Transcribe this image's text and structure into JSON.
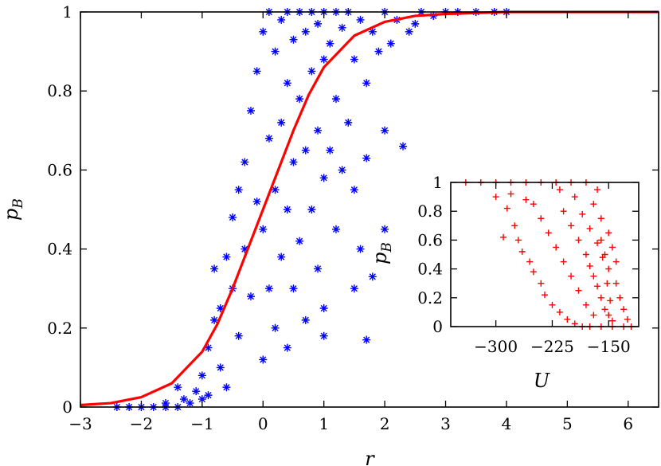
{
  "chart_data": [
    {
      "type": "scatter",
      "title": "",
      "xlabel": "r",
      "ylabel": {
        "base": "p",
        "sub": "B"
      },
      "xlim": [
        -3,
        6.5
      ],
      "ylim": [
        0,
        1
      ],
      "xticks": [
        -3,
        -2,
        -1,
        0,
        1,
        2,
        3,
        4,
        5,
        6
      ],
      "yticks": [
        0,
        0.2,
        0.4,
        0.6,
        0.8,
        1
      ],
      "xtick_labels": [
        "−3",
        "−2",
        "−1",
        "0",
        "1",
        "2",
        "3",
        "4",
        "5",
        "6"
      ],
      "ytick_labels": [
        "0",
        "0.2",
        "0.4",
        "0.6",
        "0.8",
        "1"
      ],
      "grid": false,
      "legend": "none",
      "series": [
        {
          "kind": "scatter",
          "marker": "asterisk",
          "color": "#0000ff",
          "points": [
            [
              -2.4,
              0.0
            ],
            [
              -2.2,
              0.0
            ],
            [
              -2.0,
              0.0
            ],
            [
              -1.8,
              0.0
            ],
            [
              -1.6,
              0.0
            ],
            [
              -1.6,
              0.01
            ],
            [
              -1.4,
              0.0
            ],
            [
              -1.4,
              0.05
            ],
            [
              -1.3,
              0.02
            ],
            [
              -1.2,
              0.01
            ],
            [
              -1.1,
              0.04
            ],
            [
              -1.0,
              0.02
            ],
            [
              -1.0,
              0.08
            ],
            [
              -0.9,
              0.15
            ],
            [
              -0.9,
              0.03
            ],
            [
              -0.8,
              0.22
            ],
            [
              -0.8,
              0.35
            ],
            [
              -0.7,
              0.1
            ],
            [
              -0.7,
              0.25
            ],
            [
              -0.6,
              0.38
            ],
            [
              -0.6,
              0.05
            ],
            [
              -0.5,
              0.3
            ],
            [
              -0.5,
              0.48
            ],
            [
              -0.4,
              0.55
            ],
            [
              -0.4,
              0.18
            ],
            [
              -0.3,
              0.62
            ],
            [
              -0.3,
              0.4
            ],
            [
              -0.2,
              0.75
            ],
            [
              -0.2,
              0.28
            ],
            [
              -0.1,
              0.85
            ],
            [
              -0.1,
              0.52
            ],
            [
              0.0,
              0.95
            ],
            [
              0.0,
              0.45
            ],
            [
              0.0,
              0.12
            ],
            [
              0.1,
              1.0
            ],
            [
              0.1,
              0.68
            ],
            [
              0.1,
              0.3
            ],
            [
              0.2,
              0.9
            ],
            [
              0.2,
              0.55
            ],
            [
              0.2,
              0.2
            ],
            [
              0.3,
              0.98
            ],
            [
              0.3,
              0.72
            ],
            [
              0.3,
              0.38
            ],
            [
              0.4,
              1.0
            ],
            [
              0.4,
              0.82
            ],
            [
              0.4,
              0.5
            ],
            [
              0.4,
              0.15
            ],
            [
              0.5,
              0.93
            ],
            [
              0.5,
              0.62
            ],
            [
              0.5,
              0.3
            ],
            [
              0.6,
              1.0
            ],
            [
              0.6,
              0.78
            ],
            [
              0.6,
              0.42
            ],
            [
              0.7,
              0.95
            ],
            [
              0.7,
              0.65
            ],
            [
              0.7,
              0.22
            ],
            [
              0.8,
              1.0
            ],
            [
              0.8,
              0.85
            ],
            [
              0.8,
              0.5
            ],
            [
              0.9,
              0.97
            ],
            [
              0.9,
              0.7
            ],
            [
              0.9,
              0.35
            ],
            [
              1.0,
              1.0
            ],
            [
              1.0,
              0.88
            ],
            [
              1.0,
              0.58
            ],
            [
              1.0,
              0.25
            ],
            [
              1.1,
              0.92
            ],
            [
              1.1,
              0.65
            ],
            [
              1.2,
              1.0
            ],
            [
              1.2,
              0.78
            ],
            [
              1.2,
              0.45
            ],
            [
              1.3,
              0.96
            ],
            [
              1.3,
              0.6
            ],
            [
              1.4,
              1.0
            ],
            [
              1.4,
              0.72
            ],
            [
              1.5,
              0.88
            ],
            [
              1.5,
              0.55
            ],
            [
              1.6,
              0.98
            ],
            [
              1.6,
              0.4
            ],
            [
              1.7,
              0.82
            ],
            [
              1.7,
              0.63
            ],
            [
              1.8,
              0.95
            ],
            [
              1.8,
              0.33
            ],
            [
              1.9,
              0.9
            ],
            [
              2.0,
              1.0
            ],
            [
              2.0,
              0.7
            ],
            [
              2.1,
              0.92
            ],
            [
              2.2,
              0.98
            ],
            [
              2.3,
              0.66
            ],
            [
              2.4,
              0.95
            ],
            [
              2.5,
              0.97
            ],
            [
              2.6,
              1.0
            ],
            [
              2.8,
              0.99
            ],
            [
              3.0,
              1.0
            ],
            [
              3.2,
              1.0
            ],
            [
              3.5,
              1.0
            ],
            [
              3.8,
              1.0
            ],
            [
              4.0,
              1.0
            ],
            [
              1.7,
              0.17
            ],
            [
              1.0,
              0.18
            ],
            [
              1.5,
              0.3
            ],
            [
              2.0,
              0.45
            ]
          ]
        },
        {
          "kind": "line",
          "color": "#ff0000",
          "x": [
            -3,
            -2.5,
            -2,
            -1.5,
            -1,
            -0.75,
            -0.5,
            -0.25,
            0,
            0.25,
            0.5,
            0.75,
            1,
            1.5,
            2,
            2.5,
            3,
            4,
            5,
            6.5
          ],
          "y": [
            0.005,
            0.01,
            0.025,
            0.06,
            0.14,
            0.21,
            0.3,
            0.4,
            0.5,
            0.6,
            0.7,
            0.79,
            0.86,
            0.94,
            0.975,
            0.99,
            0.995,
            1.0,
            1.0,
            1.0
          ]
        }
      ]
    },
    {
      "type": "scatter",
      "title": "",
      "xlabel": "U",
      "ylabel": {
        "base": "p",
        "sub": "B"
      },
      "xlim": [
        -360,
        -110
      ],
      "ylim": [
        0,
        1
      ],
      "xticks": [
        -300,
        -225,
        -150
      ],
      "yticks": [
        0,
        0.2,
        0.4,
        0.6,
        0.8,
        1
      ],
      "xtick_labels": [
        "−300",
        "−225",
        "−150"
      ],
      "ytick_labels": [
        "0",
        "0.2",
        "0.4",
        "0.6",
        "0.8",
        "1"
      ],
      "grid": false,
      "legend": "none",
      "series": [
        {
          "kind": "scatter",
          "marker": "plus",
          "color": "#ff0000",
          "points": [
            [
              -340,
              1.0
            ],
            [
              -320,
              1.0
            ],
            [
              -300,
              1.0
            ],
            [
              -280,
              1.0
            ],
            [
              -260,
              1.0
            ],
            [
              -240,
              1.0
            ],
            [
              -220,
              1.0
            ],
            [
              -200,
              1.0
            ],
            [
              -180,
              1.0
            ],
            [
              -165,
              0.95
            ],
            [
              -300,
              0.9
            ],
            [
              -285,
              0.82
            ],
            [
              -275,
              0.7
            ],
            [
              -270,
              0.6
            ],
            [
              -265,
              0.52
            ],
            [
              -255,
              0.45
            ],
            [
              -250,
              0.38
            ],
            [
              -240,
              0.3
            ],
            [
              -235,
              0.22
            ],
            [
              -225,
              0.15
            ],
            [
              -215,
              0.1
            ],
            [
              -205,
              0.05
            ],
            [
              -195,
              0.02
            ],
            [
              -185,
              0.0
            ],
            [
              -175,
              0.0
            ],
            [
              -160,
              0.0
            ],
            [
              -145,
              0.0
            ],
            [
              -130,
              0.0
            ],
            [
              -120,
              0.0
            ],
            [
              -210,
              0.8
            ],
            [
              -200,
              0.7
            ],
            [
              -190,
              0.6
            ],
            [
              -180,
              0.5
            ],
            [
              -175,
              0.42
            ],
            [
              -170,
              0.35
            ],
            [
              -165,
              0.28
            ],
            [
              -160,
              0.2
            ],
            [
              -155,
              0.12
            ],
            [
              -150,
              0.08
            ],
            [
              -145,
              0.04
            ],
            [
              -230,
              0.65
            ],
            [
              -220,
              0.55
            ],
            [
              -210,
              0.45
            ],
            [
              -200,
              0.35
            ],
            [
              -190,
              0.25
            ],
            [
              -180,
              0.15
            ],
            [
              -170,
              0.08
            ],
            [
              -250,
              0.85
            ],
            [
              -240,
              0.75
            ],
            [
              -160,
              0.6
            ],
            [
              -155,
              0.5
            ],
            [
              -150,
              0.4
            ],
            [
              -140,
              0.3
            ],
            [
              -135,
              0.2
            ],
            [
              -130,
              0.12
            ],
            [
              -125,
              0.05
            ],
            [
              -170,
              0.85
            ],
            [
              -160,
              0.75
            ],
            [
              -150,
              0.65
            ],
            [
              -145,
              0.55
            ],
            [
              -140,
              0.45
            ],
            [
              -280,
              0.92
            ],
            [
              -260,
              0.88
            ],
            [
              -290,
              0.62
            ],
            [
              -215,
              0.95
            ],
            [
              -195,
              0.9
            ],
            [
              -185,
              0.78
            ],
            [
              -175,
              0.68
            ],
            [
              -165,
              0.58
            ],
            [
              -158,
              0.48
            ],
            [
              -152,
              0.3
            ],
            [
              -148,
              0.18
            ]
          ]
        }
      ]
    }
  ]
}
